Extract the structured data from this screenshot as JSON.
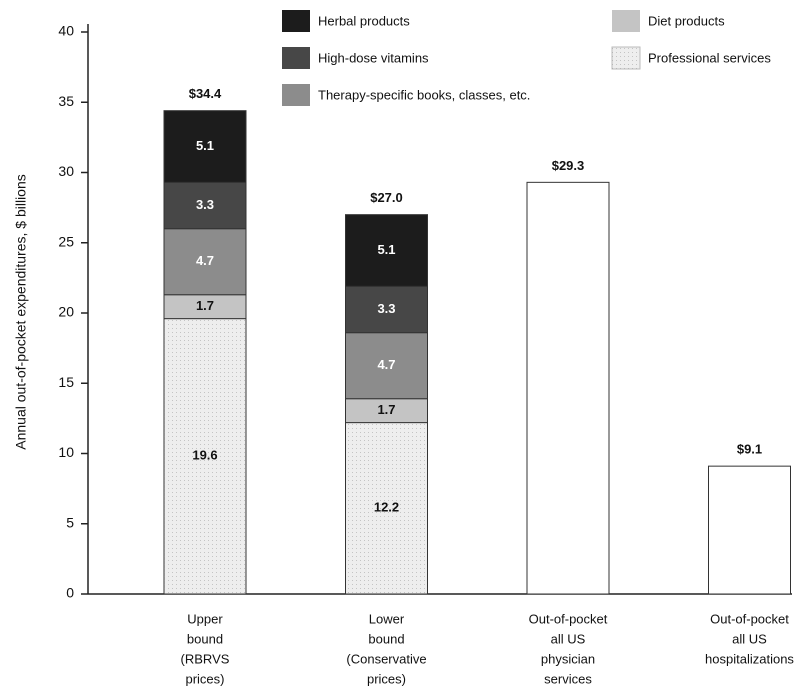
{
  "chart_data": {
    "type": "stacked_bar",
    "y_label": "Annual out-of-pocket expenditures, $ billions",
    "categories": [
      [
        "Upper",
        "bound",
        "(RBRVS",
        "prices)"
      ],
      [
        "Lower",
        "bound",
        "(Conservative",
        "prices)"
      ],
      [
        "Out-of-pocket",
        "all US",
        "physician",
        "services"
      ],
      [
        "Out-of-pocket",
        "all US",
        "hospitalizations"
      ]
    ],
    "series": [
      {
        "name": "Professional services",
        "color": "#eeeeee",
        "values": [
          19.6,
          12.2,
          null,
          null
        ]
      },
      {
        "name": "Diet products",
        "color": "#c4c4c4",
        "values": [
          1.7,
          1.7,
          null,
          null
        ]
      },
      {
        "name": "Therapy-specific books, classes, etc.",
        "color": "#8c8c8c",
        "values": [
          4.7,
          4.7,
          null,
          null
        ]
      },
      {
        "name": "High-dose vitamins",
        "color": "#474747",
        "values": [
          3.3,
          3.3,
          null,
          null
        ]
      },
      {
        "name": "Herbal products",
        "color": "#1c1c1c",
        "values": [
          5.1,
          5.1,
          null,
          null
        ]
      },
      {
        "color": "#ffffff",
        "values": [
          null,
          null,
          29.3,
          9.1
        ]
      }
    ],
    "totals": {
      "values": [
        34.4,
        27.0,
        29.3,
        9.1
      ],
      "value_labels": [
        "$34.4",
        "$27.0",
        "$29.3",
        "$9.1"
      ]
    },
    "ylim": [
      0,
      40
    ],
    "yticks": [
      0,
      5,
      10,
      15,
      20,
      25,
      30,
      35,
      40
    ]
  }
}
